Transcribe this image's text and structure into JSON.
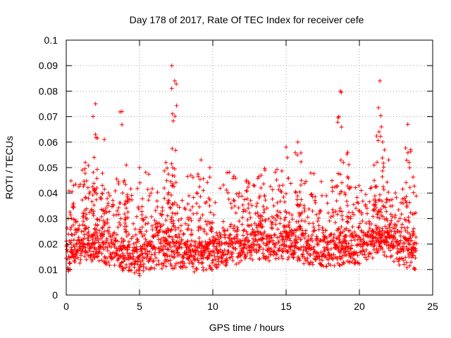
{
  "chart_data": {
    "type": "scatter",
    "title": "Day 178 of 2017, Rate Of TEC Index for receiver cefe",
    "xlabel": "GPS time / hours",
    "ylabel": "ROTI / TECUs",
    "xlim": [
      0,
      25
    ],
    "ylim": [
      0,
      0.1
    ],
    "xticks": [
      "0",
      "5",
      "10",
      "15",
      "20",
      "25"
    ],
    "yticks": [
      "0",
      "0.01",
      "0.02",
      "0.03",
      "0.04",
      "0.05",
      "0.06",
      "0.07",
      "0.08",
      "0.09",
      "0.1"
    ],
    "grid": true,
    "marker": "plus",
    "color": "#ff0000",
    "time_range_hours": [
      0,
      23.9
    ],
    "baseline_profile": [
      [
        0,
        0.014
      ],
      [
        1,
        0.016
      ],
      [
        2,
        0.018
      ],
      [
        3,
        0.016
      ],
      [
        4,
        0.014
      ],
      [
        5,
        0.013
      ],
      [
        6,
        0.015
      ],
      [
        7,
        0.016
      ],
      [
        8,
        0.015
      ],
      [
        9,
        0.014
      ],
      [
        10,
        0.015
      ],
      [
        11,
        0.016
      ],
      [
        12,
        0.018
      ],
      [
        13,
        0.019
      ],
      [
        14,
        0.018
      ],
      [
        15,
        0.019
      ],
      [
        16,
        0.018
      ],
      [
        17,
        0.016
      ],
      [
        18,
        0.016
      ],
      [
        19,
        0.017
      ],
      [
        20,
        0.017
      ],
      [
        21,
        0.02
      ],
      [
        22,
        0.02
      ],
      [
        23,
        0.016
      ],
      [
        23.9,
        0.015
      ]
    ],
    "peaks": [
      {
        "x": 0.5,
        "y": 0.043
      },
      {
        "x": 1.3,
        "y": 0.052
      },
      {
        "x": 1.9,
        "y": 0.054
      },
      {
        "x": 2.0,
        "y": 0.075
      },
      {
        "x": 2.6,
        "y": 0.061
      },
      {
        "x": 3.8,
        "y": 0.072
      },
      {
        "x": 4.1,
        "y": 0.051
      },
      {
        "x": 5.0,
        "y": 0.05
      },
      {
        "x": 6.8,
        "y": 0.052
      },
      {
        "x": 7.2,
        "y": 0.09
      },
      {
        "x": 7.4,
        "y": 0.084
      },
      {
        "x": 8.5,
        "y": 0.047
      },
      {
        "x": 9.2,
        "y": 0.053
      },
      {
        "x": 9.8,
        "y": 0.05
      },
      {
        "x": 12.3,
        "y": 0.045
      },
      {
        "x": 13.3,
        "y": 0.047
      },
      {
        "x": 15.0,
        "y": 0.058
      },
      {
        "x": 15.8,
        "y": 0.06
      },
      {
        "x": 18.7,
        "y": 0.08
      },
      {
        "x": 18.6,
        "y": 0.07
      },
      {
        "x": 19.2,
        "y": 0.056
      },
      {
        "x": 21.0,
        "y": 0.051
      },
      {
        "x": 21.4,
        "y": 0.084
      },
      {
        "x": 21.5,
        "y": 0.066
      },
      {
        "x": 22.0,
        "y": 0.053
      },
      {
        "x": 23.3,
        "y": 0.067
      },
      {
        "x": 23.5,
        "y": 0.057
      }
    ]
  }
}
